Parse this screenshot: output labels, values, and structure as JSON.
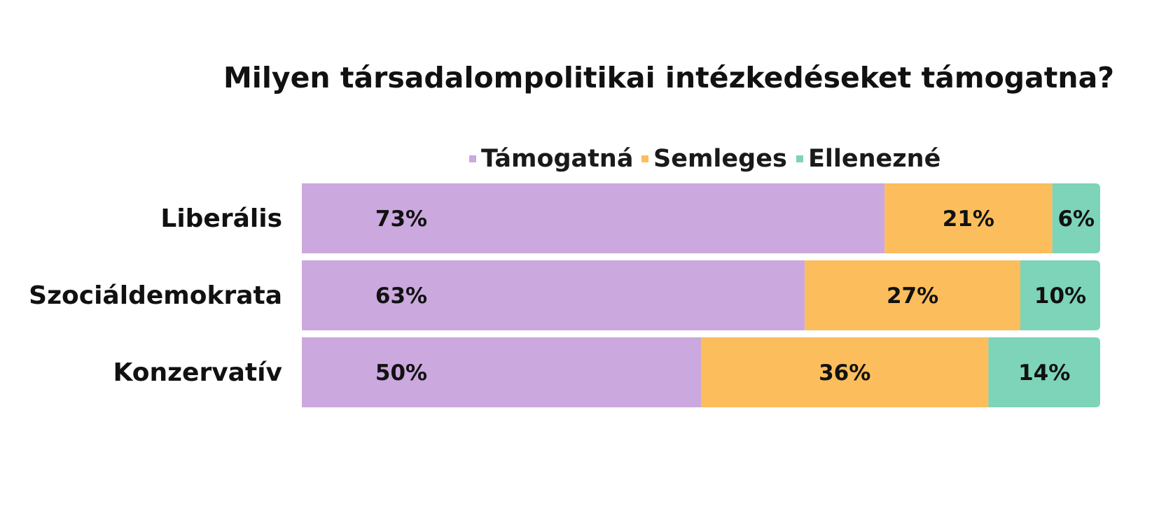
{
  "chart_data": {
    "type": "bar",
    "orientation": "horizontal",
    "stacked": true,
    "title": "Milyen társadalompolitikai intézkedéseket támogatna?",
    "categories": [
      "Liberális",
      "Szociáldemokrata",
      "Konzervatív"
    ],
    "series": [
      {
        "name": "Támogatná",
        "color": "#cba8de",
        "values": [
          73,
          63,
          50
        ],
        "labels": [
          "73%",
          "63%",
          "50%"
        ]
      },
      {
        "name": "Semleges",
        "color": "#fcbd5c",
        "values": [
          21,
          27,
          36
        ],
        "labels": [
          "21%",
          "27%",
          "36%"
        ]
      },
      {
        "name": "Ellenezné",
        "color": "#7dd4b8",
        "values": [
          6,
          10,
          14
        ],
        "labels": [
          "6%",
          "10%",
          "14%"
        ]
      }
    ],
    "xlim": [
      0,
      100
    ],
    "legend_position": "top",
    "grid": false
  }
}
